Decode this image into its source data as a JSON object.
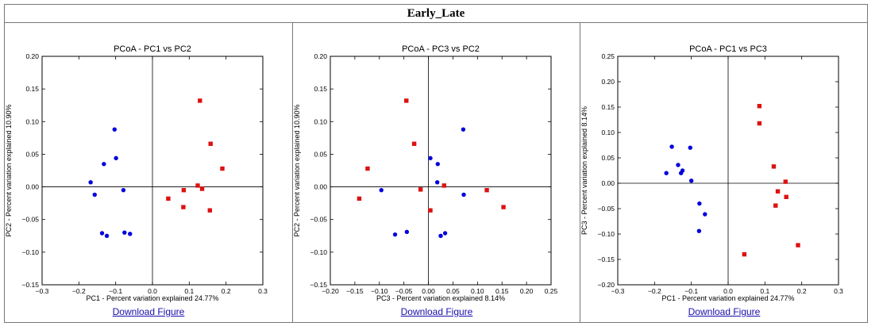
{
  "page_title": "Early_Late",
  "download_label": "Download Figure",
  "colors": {
    "early": "#0000dd",
    "late": "#dd1111"
  },
  "chart_data": [
    {
      "type": "scatter",
      "title": "PCoA - PC1 vs PC2",
      "xlabel": "PC1 - Percent variation explained 24.77%",
      "ylabel": "PC2 - Percent variation explained 10.90%",
      "xlim": [
        -0.3,
        0.3
      ],
      "ylim": [
        -0.15,
        0.2
      ],
      "xticks": [
        "−0.3",
        "−0.2",
        "−0.1",
        "0.0",
        "0.1",
        "0.2",
        "0.3"
      ],
      "xtick_values": [
        -0.3,
        -0.2,
        -0.1,
        0.0,
        0.1,
        0.2,
        0.3
      ],
      "yticks": [
        "−0.15",
        "−0.10",
        "−0.05",
        "0.00",
        "0.05",
        "0.10",
        "0.15",
        "0.20"
      ],
      "ytick_values": [
        -0.15,
        -0.1,
        -0.05,
        0.0,
        0.05,
        0.1,
        0.15,
        0.2
      ],
      "series": [
        {
          "marker": "circle",
          "color": "#0000dd",
          "points": [
            [
              -0.103,
              0.088
            ],
            [
              -0.099,
              0.044
            ],
            [
              -0.132,
              0.035
            ],
            [
              -0.168,
              0.007
            ],
            [
              -0.157,
              -0.012
            ],
            [
              -0.079,
              -0.005
            ],
            [
              -0.137,
              -0.071
            ],
            [
              -0.124,
              -0.075
            ],
            [
              -0.076,
              -0.07
            ],
            [
              -0.061,
              -0.072
            ]
          ]
        },
        {
          "marker": "square",
          "color": "#dd1111",
          "points": [
            [
              0.129,
              0.132
            ],
            [
              0.158,
              0.066
            ],
            [
              0.19,
              0.028
            ],
            [
              0.123,
              0.002
            ],
            [
              0.135,
              -0.003
            ],
            [
              0.085,
              -0.005
            ],
            [
              0.043,
              -0.018
            ],
            [
              0.084,
              -0.031
            ],
            [
              0.156,
              -0.036
            ]
          ]
        }
      ]
    },
    {
      "type": "scatter",
      "title": "PCoA - PC3 vs PC2",
      "xlabel": "PC3 - Percent variation explained 8.14%",
      "ylabel": "PC2 - Percent variation explained 10.90%",
      "xlim": [
        -0.2,
        0.25
      ],
      "ylim": [
        -0.15,
        0.2
      ],
      "xticks": [
        "−0.20",
        "−0.15",
        "−0.10",
        "−0.05",
        "0.00",
        "0.05",
        "0.10",
        "0.15",
        "0.20",
        "0.25"
      ],
      "xtick_values": [
        -0.2,
        -0.15,
        -0.1,
        -0.05,
        0.0,
        0.05,
        0.1,
        0.15,
        0.2,
        0.25
      ],
      "yticks": [
        "−0.15",
        "−0.10",
        "−0.05",
        "0.00",
        "0.05",
        "0.10",
        "0.15",
        "0.20"
      ],
      "ytick_values": [
        -0.15,
        -0.1,
        -0.05,
        0.0,
        0.05,
        0.1,
        0.15,
        0.2
      ],
      "series": [
        {
          "marker": "circle",
          "color": "#0000dd",
          "points": [
            [
              0.071,
              0.088
            ],
            [
              0.004,
              0.044
            ],
            [
              0.019,
              0.035
            ],
            [
              0.018,
              0.007
            ],
            [
              -0.096,
              -0.005
            ],
            [
              0.072,
              -0.012
            ],
            [
              -0.068,
              -0.073
            ],
            [
              -0.044,
              -0.069
            ],
            [
              0.025,
              -0.075
            ],
            [
              0.034,
              -0.071
            ]
          ]
        },
        {
          "marker": "square",
          "color": "#dd1111",
          "points": [
            [
              -0.045,
              0.132
            ],
            [
              -0.029,
              0.066
            ],
            [
              -0.124,
              0.028
            ],
            [
              0.032,
              0.002
            ],
            [
              -0.016,
              -0.004
            ],
            [
              0.119,
              -0.005
            ],
            [
              -0.141,
              -0.018
            ],
            [
              0.004,
              -0.036
            ],
            [
              0.153,
              -0.031
            ]
          ]
        }
      ]
    },
    {
      "type": "scatter",
      "title": "PCoA - PC1 vs PC3",
      "xlabel": "PC1 - Percent variation explained 24.77%",
      "ylabel": "PC3 - Percent variation explained 8.14%",
      "xlim": [
        -0.3,
        0.3
      ],
      "ylim": [
        -0.2,
        0.25
      ],
      "xticks": [
        "−0.3",
        "−0.2",
        "−0.1",
        "0.0",
        "0.1",
        "0.2",
        "0.3"
      ],
      "xtick_values": [
        -0.3,
        -0.2,
        -0.1,
        0.0,
        0.1,
        0.2,
        0.3
      ],
      "yticks": [
        "−0.20",
        "−0.15",
        "−0.10",
        "−0.05",
        "0.00",
        "0.05",
        "0.10",
        "0.15",
        "0.20",
        "0.25"
      ],
      "ytick_values": [
        -0.2,
        -0.15,
        -0.1,
        -0.05,
        0.0,
        0.05,
        0.1,
        0.15,
        0.2,
        0.25
      ],
      "series": [
        {
          "marker": "circle",
          "color": "#0000dd",
          "points": [
            [
              -0.153,
              0.072
            ],
            [
              -0.103,
              0.07
            ],
            [
              -0.136,
              0.036
            ],
            [
              -0.124,
              0.025
            ],
            [
              -0.168,
              0.02
            ],
            [
              -0.128,
              0.02
            ],
            [
              -0.1,
              0.005
            ],
            [
              -0.078,
              -0.04
            ],
            [
              -0.063,
              -0.061
            ],
            [
              -0.079,
              -0.094
            ]
          ]
        },
        {
          "marker": "square",
          "color": "#dd1111",
          "points": [
            [
              0.085,
              0.152
            ],
            [
              0.085,
              0.118
            ],
            [
              0.124,
              0.033
            ],
            [
              0.156,
              0.003
            ],
            [
              0.135,
              -0.016
            ],
            [
              0.158,
              -0.027
            ],
            [
              0.129,
              -0.044
            ],
            [
              0.19,
              -0.122
            ],
            [
              0.044,
              -0.14
            ]
          ]
        }
      ]
    }
  ]
}
